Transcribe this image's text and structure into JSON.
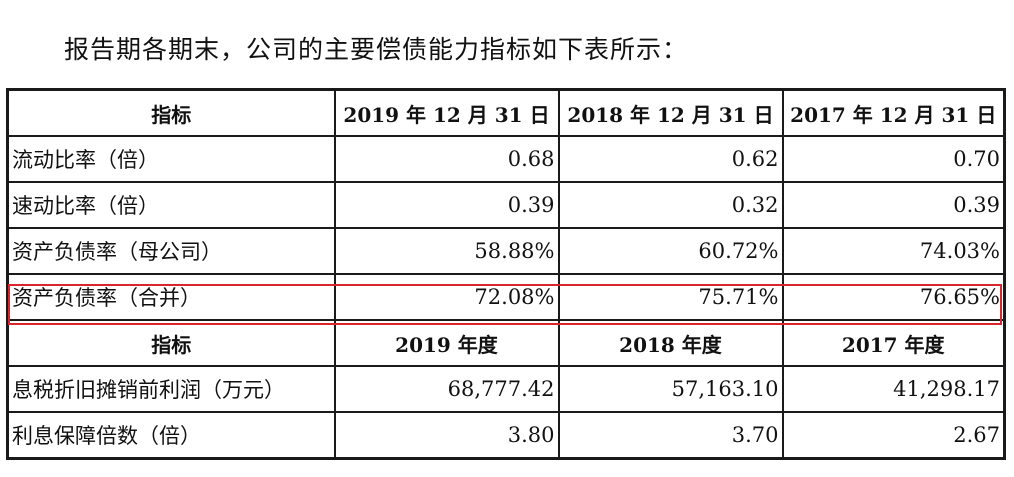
{
  "intro_text": "报告期各期末，公司的主要偿债能力指标如下表所示：",
  "table": {
    "header_1": [
      "指标",
      "2019 年 12 月 31 日",
      "2018 年 12 月 31 日",
      "2017 年 12 月 31 日"
    ],
    "rows_1": [
      {
        "label": "流动比率（倍）",
        "values": [
          "0.68",
          "0.62",
          "0.70"
        ]
      },
      {
        "label": "速动比率（倍）",
        "values": [
          "0.39",
          "0.32",
          "0.39"
        ]
      },
      {
        "label": "资产负债率（母公司）",
        "values": [
          "58.88%",
          "60.72%",
          "74.03%"
        ]
      },
      {
        "label": "资产负债率（合并）",
        "values": [
          "72.08%",
          "75.71%",
          "76.65%"
        ]
      }
    ],
    "header_2": [
      "指标",
      "2019 年度",
      "2018 年度",
      "2017 年度"
    ],
    "rows_2": [
      {
        "label": "息税折旧摊销前利润（万元）",
        "values": [
          "68,777.42",
          "57,163.10",
          "41,298.17"
        ]
      },
      {
        "label": "利息保障倍数（倍）",
        "values": [
          "3.80",
          "3.70",
          "2.67"
        ]
      }
    ]
  },
  "highlight_color": "#d9262c"
}
